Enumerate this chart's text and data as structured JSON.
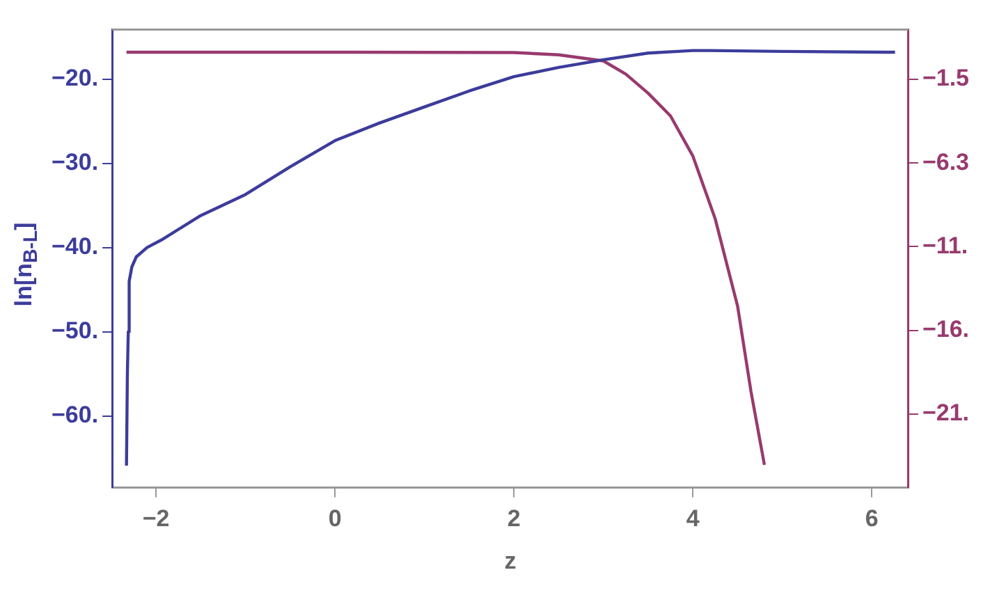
{
  "chart_data": {
    "type": "line",
    "xlabel": "z",
    "ylabel": "ln[n$_{B-L}$]",
    "xlim": [
      -2.49,
      6.41
    ],
    "xticks": [
      {
        "value": -2,
        "label": "−2"
      },
      0,
      2,
      4,
      6
    ],
    "ylim": [
      -68.5,
      -14.1
    ],
    "yticks": [
      {
        "value": -20,
        "label": "−20."
      },
      {
        "value": -30,
        "label": "−30."
      },
      {
        "value": -40,
        "label": "−40."
      },
      {
        "value": -50,
        "label": "−50."
      },
      {
        "value": -60,
        "label": "−60."
      }
    ],
    "y2lim": [
      -24.9,
      1.35
    ],
    "y2ticks": [
      {
        "value": -1.5,
        "label": "−1.5"
      },
      {
        "value": -6.3,
        "label": "−6.3"
      },
      {
        "value": -11.1,
        "label": "−11."
      },
      {
        "value": -15.9,
        "label": "−16."
      },
      {
        "value": -20.7,
        "label": "−21."
      }
    ],
    "grid": false,
    "legend": false,
    "marker": "none",
    "line_style": "solid",
    "series": [
      {
        "color": "#3c3c9c",
        "x": [
          -2.33,
          -2.32,
          -2.31,
          -2.3,
          -2.27,
          -2.22,
          -2.1,
          -1.94,
          -1.5,
          -1,
          -0.5,
          0,
          0.5,
          1,
          1.5,
          2,
          2.5,
          3,
          3.5,
          4,
          4.2,
          5,
          6.26
        ],
        "values": [
          -65.9,
          -55,
          -50,
          -44,
          -42.3,
          -41.1,
          -40,
          -39.1,
          -36.2,
          -33.7,
          -30.4,
          -27.3,
          -25.2,
          -23.3,
          -21.4,
          -19.7,
          -18.6,
          -17.7,
          -16.9,
          -16.6,
          -16.6,
          -16.7,
          -16.8
        ]
      },
      {
        "color": "#983a6e",
        "axis": "y2",
        "x": [
          -2.33,
          0,
          2,
          2.5,
          3,
          3.25,
          3.5,
          3.75,
          4,
          4.25,
          4.5,
          4.65,
          4.8
        ],
        "values": [
          0.05,
          0.05,
          0.03,
          -0.1,
          -0.45,
          -1.2,
          -2.3,
          -3.6,
          -5.9,
          -9.5,
          -14.5,
          -19.4,
          -23.6
        ]
      }
    ]
  }
}
